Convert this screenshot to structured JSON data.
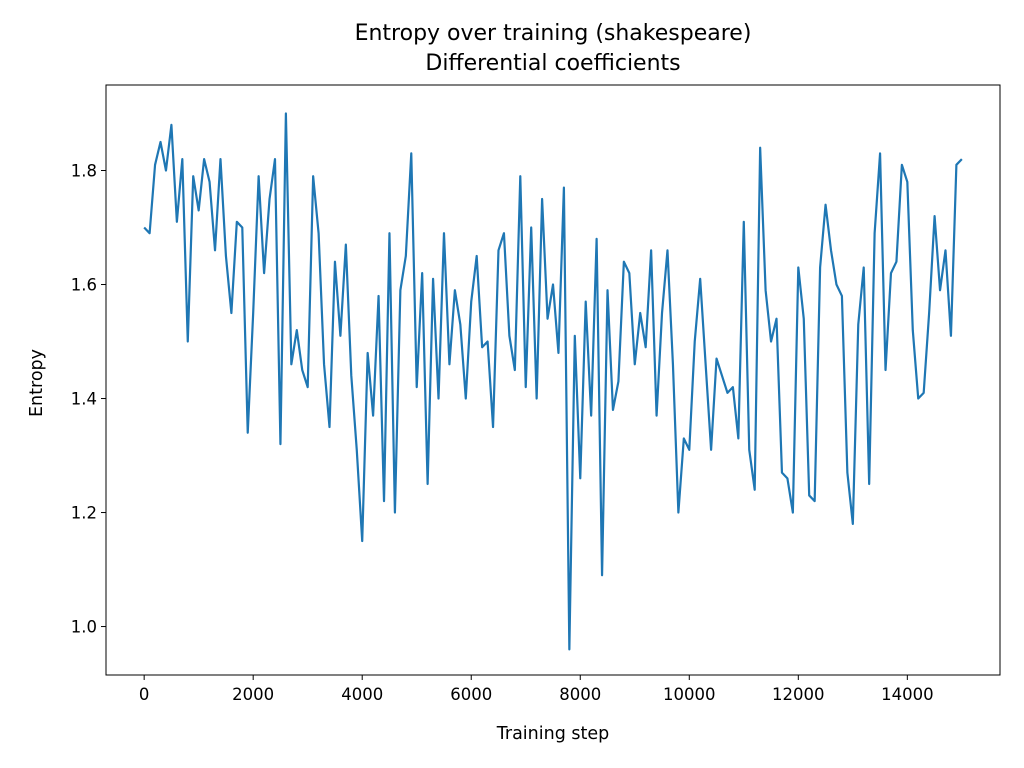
{
  "chart_data": {
    "type": "line",
    "title": "Entropy over training (shakespeare)",
    "subtitle": "Differential coefficients",
    "xlabel": "Training step",
    "ylabel": "Entropy",
    "xlim": [
      -700,
      15700
    ],
    "ylim": [
      0.915,
      1.95
    ],
    "xticks": [
      0,
      2000,
      4000,
      6000,
      8000,
      10000,
      12000,
      14000
    ],
    "yticks": [
      1.0,
      1.2,
      1.4,
      1.6,
      1.8
    ],
    "grid": false,
    "legend": "none",
    "line_color": "#1f77b4",
    "series": [
      {
        "x": [
          0,
          100,
          200,
          300,
          400,
          500,
          600,
          700,
          800,
          900,
          1000,
          1100,
          1200,
          1300,
          1400,
          1500,
          1600,
          1700,
          1800,
          1900,
          2000,
          2100,
          2200,
          2300,
          2400,
          2500,
          2600,
          2700,
          2800,
          2900,
          3000,
          3100,
          3200,
          3300,
          3400,
          3500,
          3600,
          3700,
          3800,
          3900,
          4000,
          4100,
          4200,
          4300,
          4400,
          4500,
          4600,
          4700,
          4800,
          4900,
          5000,
          5100,
          5200,
          5300,
          5400,
          5500,
          5600,
          5700,
          5800,
          5900,
          6000,
          6100,
          6200,
          6300,
          6400,
          6500,
          6600,
          6700,
          6800,
          6900,
          7000,
          7100,
          7200,
          7300,
          7400,
          7500,
          7600,
          7700,
          7800,
          7900,
          8000,
          8100,
          8200,
          8300,
          8400,
          8500,
          8600,
          8700,
          8800,
          8900,
          9000,
          9100,
          9200,
          9300,
          9400,
          9500,
          9600,
          9700,
          9800,
          9900,
          10000,
          10100,
          10200,
          10300,
          10400,
          10500,
          10600,
          10700,
          10800,
          10900,
          11000,
          11100,
          11200,
          11300,
          11400,
          11500,
          11600,
          11700,
          11800,
          11900,
          12000,
          12100,
          12200,
          12300,
          12400,
          12500,
          12600,
          12700,
          12800,
          12900,
          13000,
          13100,
          13200,
          13300,
          13400,
          13500,
          13600,
          13700,
          13800,
          13900,
          14000,
          14100,
          14200,
          14300,
          14400,
          14500,
          14600,
          14700,
          14800,
          14900,
          15000
        ],
        "y": [
          1.7,
          1.69,
          1.81,
          1.85,
          1.8,
          1.88,
          1.71,
          1.82,
          1.5,
          1.79,
          1.73,
          1.82,
          1.78,
          1.66,
          1.82,
          1.65,
          1.55,
          1.71,
          1.7,
          1.34,
          1.55,
          1.79,
          1.62,
          1.75,
          1.82,
          1.32,
          1.9,
          1.46,
          1.52,
          1.45,
          1.42,
          1.79,
          1.69,
          1.46,
          1.35,
          1.64,
          1.51,
          1.67,
          1.44,
          1.31,
          1.15,
          1.48,
          1.37,
          1.58,
          1.22,
          1.69,
          1.2,
          1.59,
          1.65,
          1.83,
          1.42,
          1.62,
          1.25,
          1.61,
          1.4,
          1.69,
          1.46,
          1.59,
          1.53,
          1.4,
          1.57,
          1.65,
          1.49,
          1.5,
          1.35,
          1.66,
          1.69,
          1.51,
          1.45,
          1.79,
          1.42,
          1.7,
          1.4,
          1.75,
          1.54,
          1.6,
          1.48,
          1.77,
          0.96,
          1.51,
          1.26,
          1.57,
          1.37,
          1.68,
          1.09,
          1.59,
          1.38,
          1.43,
          1.64,
          1.62,
          1.46,
          1.55,
          1.49,
          1.66,
          1.37,
          1.55,
          1.66,
          1.46,
          1.2,
          1.33,
          1.31,
          1.5,
          1.61,
          1.46,
          1.31,
          1.47,
          1.44,
          1.41,
          1.42,
          1.33,
          1.71,
          1.31,
          1.24,
          1.84,
          1.59,
          1.5,
          1.54,
          1.27,
          1.26,
          1.2,
          1.63,
          1.54,
          1.23,
          1.22,
          1.63,
          1.74,
          1.66,
          1.6,
          1.58,
          1.27,
          1.18,
          1.53,
          1.63,
          1.25,
          1.69,
          1.83,
          1.45,
          1.62,
          1.64,
          1.81,
          1.78,
          1.52,
          1.4,
          1.41,
          1.55,
          1.72,
          1.59,
          1.66,
          1.51,
          1.81,
          1.82
        ]
      }
    ]
  }
}
